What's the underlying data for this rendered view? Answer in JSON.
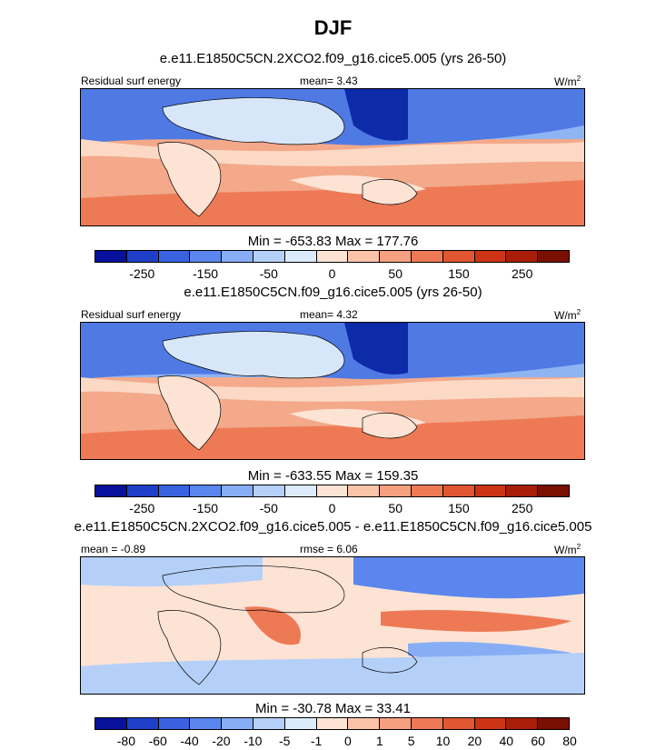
{
  "season": "DJF",
  "panels": [
    {
      "title": "e.e11.E1850C5CN.2XCO2.f09_g16.cice5.005 (yrs 26-50)",
      "left_label": "Residual surf energy",
      "center_label": "mean=  3.43",
      "units": "W/m",
      "units_sup": "2",
      "minmax": "Min = -653.83 Max = 177.76",
      "colorbar_labels": [
        "-250",
        "-150",
        "-50",
        "0",
        "50",
        "150",
        "250"
      ]
    },
    {
      "title": "e.e11.E1850C5CN.f09_g16.cice5.005 (yrs 26-50)",
      "left_label": "Residual surf energy",
      "center_label": "mean=  4.32",
      "units": "W/m",
      "units_sup": "2",
      "minmax": "Min = -633.55 Max = 159.35",
      "colorbar_labels": [
        "-250",
        "-150",
        "-50",
        "0",
        "50",
        "150",
        "250"
      ]
    },
    {
      "title": "e.e11.E1850C5CN.2XCO2.f09_g16.cice5.005 - e.e11.E1850C5CN.f09_g16.cice5.005",
      "left_label": "mean = -0.89",
      "center_label": "rmse =  6.06",
      "units": "W/m",
      "units_sup": "2",
      "minmax": "Min = -30.78 Max =  33.41",
      "colorbar_labels": [
        "-80",
        "-60",
        "-40",
        "-20",
        "-10",
        "-5",
        "-1",
        "0",
        "1",
        "5",
        "10",
        "20",
        "40",
        "60",
        "80"
      ]
    }
  ],
  "colors": {
    "colorbar": [
      "#08119a",
      "#1f3fc8",
      "#3a62e0",
      "#5b86ee",
      "#87aef5",
      "#b5d0f8",
      "#dcebfb",
      "#fde3d4",
      "#fbc4a9",
      "#f5a07f",
      "#ed7a55",
      "#e25632",
      "#cc3415",
      "#a81e08",
      "#7a1002"
    ],
    "land": "#d7e7f9",
    "ocean_pos": "#f6b99c",
    "ocean_neg": "#2d56d4"
  }
}
